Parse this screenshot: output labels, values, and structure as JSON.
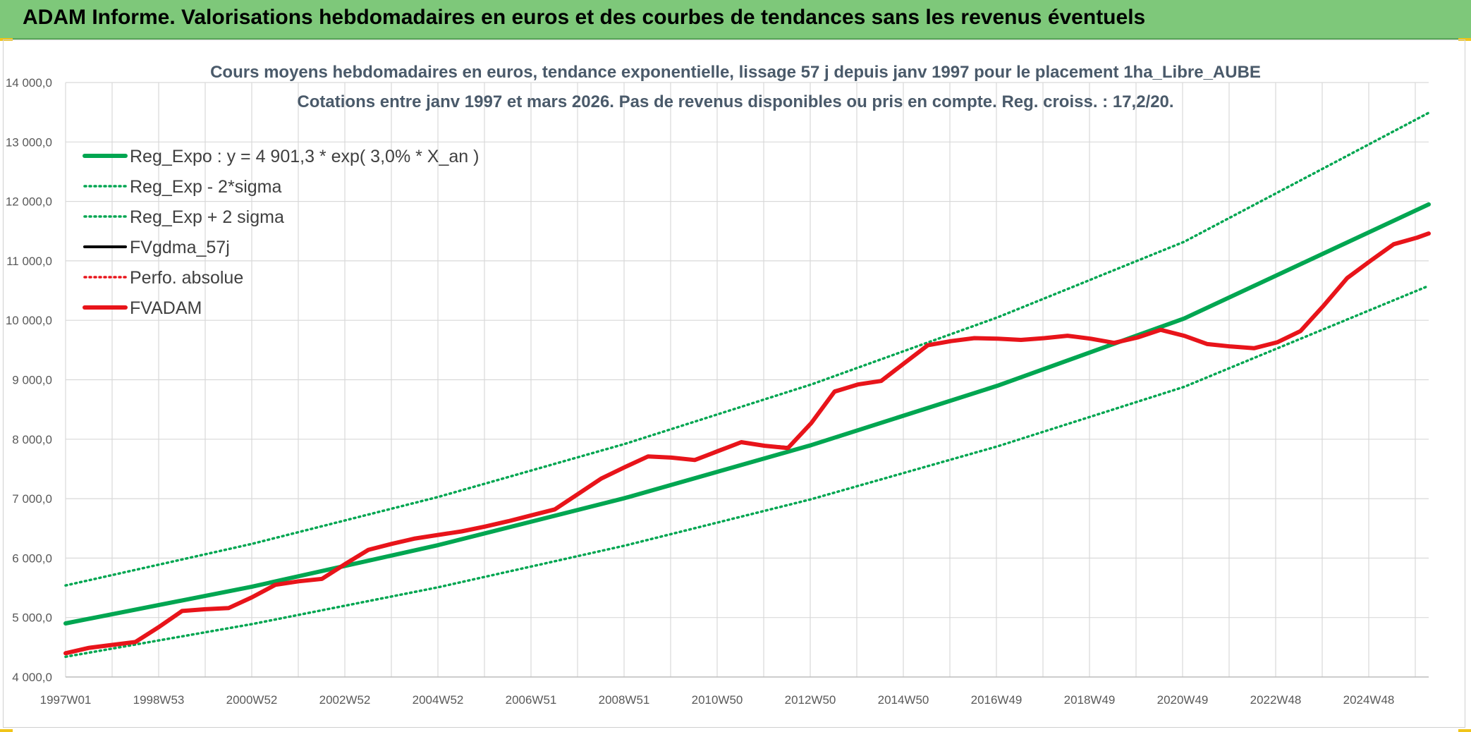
{
  "header": {
    "title": "ADAM Informe. Valorisations hebdomadaires en euros et des courbes de tendances sans les revenus éventuels"
  },
  "colors": {
    "banner": "#7ec87a",
    "green": "#00a651",
    "red": "#e8141a",
    "black": "#000000",
    "accent": "#f0c419"
  },
  "chart_data": {
    "type": "line",
    "title_line1": "Cours moyens hebdomadaires en euros, tendance exponentielle, lissage 57 j depuis janv 1997 pour le placement 1ha_Libre_AUBE",
    "title_line2": "Cotations entre janv 1997 et mars 2026. Pas de revenus disponibles ou pris en compte. Reg. croiss. : 17,2/20.",
    "ylim": [
      4000,
      14000
    ],
    "xlim": [
      1997.0,
      2026.25
    ],
    "grid": true,
    "legend_position": "top-left",
    "y_ticks": [
      "4 000,0",
      "5 000,0",
      "6 000,0",
      "7 000,0",
      "8 000,0",
      "9 000,0",
      "10 000,0",
      "11 000,0",
      "12 000,0",
      "13 000,0",
      "14 000,0"
    ],
    "x_ticks": [
      "1997W01",
      "1998W53",
      "2000W52",
      "2002W52",
      "2004W52",
      "2006W51",
      "2008W51",
      "2010W50",
      "2012W50",
      "2014W50",
      "2016W49",
      "2018W49",
      "2020W49",
      "2022W48",
      "2024W48"
    ],
    "series": [
      {
        "name": "Reg_Expo : y = 4 901,3 * exp( 3,0% *  X_an )",
        "style": "solid-thick",
        "color": "#00a651",
        "x": [
          1997.0,
          2001.0,
          2005.0,
          2009.0,
          2013.0,
          2017.0,
          2021.0,
          2026.25
        ],
        "values": [
          4901,
          5520,
          6220,
          7010,
          7900,
          8900,
          10030,
          11950
        ]
      },
      {
        "name": "Reg_Exp - 2*sigma",
        "style": "dotted",
        "color": "#00a651",
        "x": [
          1997.0,
          2001.0,
          2005.0,
          2009.0,
          2013.0,
          2017.0,
          2021.0,
          2026.25
        ],
        "values": [
          4340,
          4890,
          5510,
          6210,
          6990,
          7880,
          8880,
          10580
        ]
      },
      {
        "name": "Reg_Exp + 2 sigma",
        "style": "dotted",
        "color": "#00a651",
        "x": [
          1997.0,
          2001.0,
          2005.0,
          2009.0,
          2013.0,
          2017.0,
          2021.0,
          2026.25
        ],
        "values": [
          5540,
          6240,
          7030,
          7920,
          8920,
          10050,
          11320,
          13490
        ]
      },
      {
        "name": "FVgdma_57j",
        "style": "solid-thin",
        "color": "#000000",
        "x": [
          1997.0,
          1997.5,
          1998.0,
          1998.5,
          1999.0,
          1999.5,
          2000.0,
          2000.5,
          2001.0,
          2001.5,
          2002.0,
          2002.5,
          2003.0,
          2003.5,
          2004.0,
          2004.5,
          2005.0,
          2005.5,
          2006.0,
          2006.5,
          2007.0,
          2007.5,
          2008.0,
          2008.5,
          2009.0,
          2009.5,
          2010.0,
          2010.5,
          2011.0,
          2011.5,
          2012.0,
          2012.5,
          2013.0,
          2013.5,
          2014.0,
          2014.5,
          2015.0,
          2015.5,
          2016.0,
          2016.5,
          2017.0,
          2017.5,
          2018.0,
          2018.5,
          2019.0,
          2019.5,
          2020.0,
          2020.5,
          2021.0,
          2021.5,
          2022.0,
          2022.5,
          2023.0,
          2023.5,
          2024.0,
          2024.5,
          2025.0,
          2025.5,
          2026.0,
          2026.25
        ],
        "values": [
          4410,
          4490,
          4540,
          4600,
          4850,
          5120,
          5150,
          5170,
          5350,
          5560,
          5620,
          5660,
          5910,
          6150,
          6250,
          6340,
          6400,
          6460,
          6540,
          6630,
          6730,
          6830,
          7090,
          7350,
          7540,
          7720,
          7700,
          7660,
          7820,
          7960,
          7900,
          7870,
          8290,
          8820,
          8930,
          8990,
          9290,
          9590,
          9660,
          9710,
          9700,
          9680,
          9710,
          9750,
          9700,
          9630,
          9720,
          9850,
          9750,
          9610,
          9570,
          9540,
          9640,
          9830,
          10260,
          10720,
          11010,
          11290,
          11400,
          11470
        ]
      },
      {
        "name": "Perfo. absolue",
        "style": "dotted",
        "color": "#e8141a",
        "x": [],
        "values": []
      },
      {
        "name": "FVADAM",
        "style": "solid-thick",
        "color": "#e8141a",
        "x": [
          1997.0,
          1997.5,
          1998.0,
          1998.5,
          1999.0,
          1999.5,
          2000.0,
          2000.5,
          2001.0,
          2001.5,
          2002.0,
          2002.5,
          2003.0,
          2003.5,
          2004.0,
          2004.5,
          2005.0,
          2005.5,
          2006.0,
          2006.5,
          2007.0,
          2007.5,
          2008.0,
          2008.5,
          2009.0,
          2009.5,
          2010.0,
          2010.5,
          2011.0,
          2011.5,
          2012.0,
          2012.5,
          2013.0,
          2013.5,
          2014.0,
          2014.5,
          2015.0,
          2015.5,
          2016.0,
          2016.5,
          2017.0,
          2017.5,
          2018.0,
          2018.5,
          2019.0,
          2019.5,
          2020.0,
          2020.5,
          2021.0,
          2021.5,
          2022.0,
          2022.5,
          2023.0,
          2023.5,
          2024.0,
          2024.5,
          2025.0,
          2025.5,
          2026.0,
          2026.25
        ],
        "values": [
          4400,
          4490,
          4540,
          4590,
          4840,
          5110,
          5140,
          5160,
          5340,
          5550,
          5610,
          5650,
          5900,
          6140,
          6240,
          6330,
          6390,
          6450,
          6530,
          6620,
          6720,
          6820,
          7080,
          7340,
          7530,
          7710,
          7690,
          7650,
          7800,
          7950,
          7890,
          7850,
          8270,
          8800,
          8920,
          8980,
          9280,
          9580,
          9650,
          9700,
          9690,
          9670,
          9700,
          9740,
          9690,
          9620,
          9710,
          9840,
          9740,
          9600,
          9560,
          9530,
          9630,
          9820,
          10250,
          10710,
          11000,
          11280,
          11390,
          11460
        ]
      }
    ]
  }
}
